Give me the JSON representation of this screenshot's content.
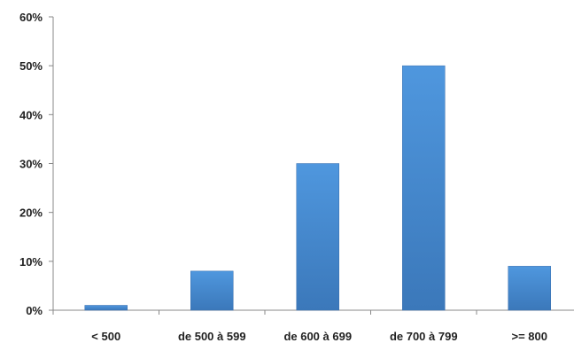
{
  "chart_data": {
    "type": "bar",
    "categories": [
      "< 500",
      "de 500 à 599",
      "de 600 à 699",
      "de 700 à 799",
      ">= 800"
    ],
    "values": [
      1,
      8,
      30,
      50,
      9
    ],
    "ylim": [
      0,
      60
    ],
    "yticks": [
      "0%",
      "10%",
      "20%",
      "30%",
      "40%",
      "50%",
      "60%"
    ],
    "grid": false,
    "legend": "none",
    "colors": {
      "bar": "#4a90d9",
      "bar_dark": "#3a76b8",
      "axis": "#888888"
    }
  }
}
